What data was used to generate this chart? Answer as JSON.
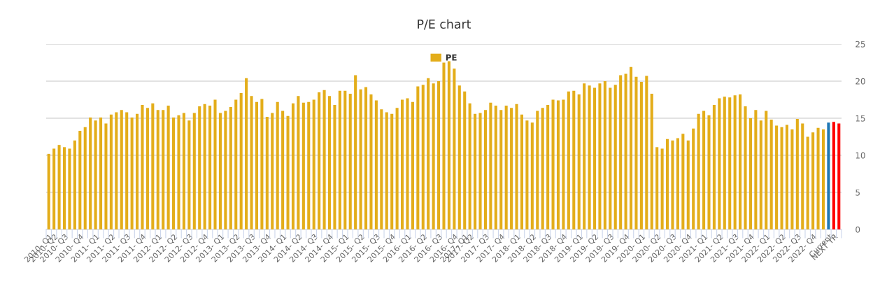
{
  "chart_data": {
    "type": "bar",
    "title": "P/E chart",
    "categories": [
      "2010- Q1",
      "2010- Q2",
      null,
      "2010- Q3",
      null,
      null,
      "2010- Q4",
      null,
      null,
      "2011- Q1",
      null,
      null,
      "2011- Q2",
      null,
      null,
      "2011- Q3",
      null,
      null,
      "2011- Q4",
      null,
      null,
      "2012- Q1",
      null,
      null,
      "2012- Q2",
      null,
      null,
      "2012- Q3",
      null,
      null,
      "2012- Q4",
      null,
      null,
      "2013- Q1",
      null,
      null,
      "2013- Q2",
      null,
      null,
      "2013- Q3",
      null,
      null,
      "2013- Q4",
      null,
      null,
      "2014- Q1",
      null,
      null,
      "2014- Q2",
      null,
      null,
      "2014- Q3",
      null,
      null,
      "2014- Q4",
      null,
      null,
      "2015- Q1",
      null,
      null,
      "2015- Q2",
      null,
      null,
      "2015- Q3",
      null,
      null,
      "2015- Q4",
      null,
      null,
      "2016- Q1",
      null,
      null,
      "2016- Q2",
      null,
      null,
      "2016- Q3",
      null,
      null,
      "2016- Q4",
      null,
      "2017- Q1",
      "2017- Q2",
      null,
      null,
      "2017- Q3",
      null,
      null,
      "2017- Q4",
      null,
      null,
      "2018- Q1",
      null,
      null,
      "2018- Q2",
      null,
      null,
      "2018- Q3",
      null,
      null,
      "2018- Q4",
      null,
      null,
      "2019- Q1",
      null,
      null,
      "2019- Q2",
      null,
      null,
      "2019- Q3",
      null,
      null,
      "2019- Q4",
      null,
      null,
      "2020- Q1",
      null,
      null,
      "2020- Q2",
      null,
      null,
      "2020- Q3",
      null,
      null,
      "2020- Q4",
      null,
      null,
      "2021- Q1",
      null,
      null,
      "2021- Q2",
      null,
      null,
      "2021- Q3",
      null,
      null,
      "2021- Q4",
      null,
      null,
      "2022- Q1",
      null,
      null,
      "2022- Q2",
      null,
      null,
      "2022- Q3",
      null,
      null,
      "2022- Q4",
      null,
      null,
      "Current",
      "NEXT YR",
      null
    ],
    "series": [
      {
        "name": "PE",
        "color": "#e3ad1a",
        "values": [
          10.2,
          10.9,
          11.4,
          11.1,
          10.9,
          12.0,
          13.3,
          13.8,
          15.1,
          14.7,
          15.1,
          14.3,
          15.5,
          15.8,
          16.1,
          15.8,
          15.1,
          15.6,
          16.8,
          16.4,
          17.0,
          16.1,
          16.1,
          16.7,
          15.1,
          15.4,
          15.7,
          14.7,
          15.7,
          16.6,
          16.9,
          16.7,
          17.5,
          15.7,
          16.0,
          16.5,
          17.5,
          18.4,
          20.4,
          18.0,
          17.2,
          17.6,
          15.2,
          15.7,
          17.2,
          16.0,
          15.3,
          17.0,
          18.0,
          17.1,
          17.2,
          17.5,
          18.5,
          18.8,
          18.0,
          16.8,
          18.7,
          18.7,
          18.3,
          20.8,
          18.9,
          19.2,
          18.2,
          17.4,
          16.2,
          15.8,
          15.6,
          16.4,
          17.5,
          17.7,
          17.2,
          19.3,
          19.5,
          20.4,
          19.7,
          20.0,
          22.5,
          22.7,
          21.7,
          19.4,
          18.6,
          17.0,
          15.6,
          15.7,
          16.1,
          17.1,
          16.7,
          16.1,
          16.7,
          16.4,
          16.9,
          15.5,
          14.7,
          14.4,
          16.0,
          16.4,
          16.8,
          17.5,
          17.4,
          17.5,
          18.6,
          18.7,
          18.2,
          19.7,
          19.4,
          19.1,
          19.7,
          20.0,
          19.1,
          19.5,
          20.8,
          21.0,
          21.9,
          20.6,
          19.9,
          20.7,
          18.3,
          11.1,
          10.9,
          12.2,
          12.0,
          12.3,
          12.9,
          12.0,
          13.6,
          15.6,
          16.0,
          15.4,
          16.8,
          17.7,
          17.9,
          17.8,
          18.1,
          18.2,
          16.6,
          15.0,
          16.1,
          14.7,
          16.0,
          14.8,
          14.0,
          13.8,
          14.1,
          13.5,
          14.9,
          14.3,
          12.5,
          13.1,
          13.7,
          13.5,
          14.4,
          14.5,
          14.3
        ],
        "colors": [
          "#e3ad1a",
          "#e3ad1a",
          "#e3ad1a",
          "#e3ad1a",
          "#e3ad1a",
          "#e3ad1a",
          "#e3ad1a",
          "#e3ad1a",
          "#e3ad1a",
          "#e3ad1a",
          "#e3ad1a",
          "#e3ad1a",
          "#e3ad1a",
          "#e3ad1a",
          "#e3ad1a",
          "#e3ad1a",
          "#e3ad1a",
          "#e3ad1a",
          "#e3ad1a",
          "#e3ad1a",
          "#e3ad1a",
          "#e3ad1a",
          "#e3ad1a",
          "#e3ad1a",
          "#e3ad1a",
          "#e3ad1a",
          "#e3ad1a",
          "#e3ad1a",
          "#e3ad1a",
          "#e3ad1a",
          "#e3ad1a",
          "#e3ad1a",
          "#e3ad1a",
          "#e3ad1a",
          "#e3ad1a",
          "#e3ad1a",
          "#e3ad1a",
          "#e3ad1a",
          "#e3ad1a",
          "#e3ad1a",
          "#e3ad1a",
          "#e3ad1a",
          "#e3ad1a",
          "#e3ad1a",
          "#e3ad1a",
          "#e3ad1a",
          "#e3ad1a",
          "#e3ad1a",
          "#e3ad1a",
          "#e3ad1a",
          "#e3ad1a",
          "#e3ad1a",
          "#e3ad1a",
          "#e3ad1a",
          "#e3ad1a",
          "#e3ad1a",
          "#e3ad1a",
          "#e3ad1a",
          "#e3ad1a",
          "#e3ad1a",
          "#e3ad1a",
          "#e3ad1a",
          "#e3ad1a",
          "#e3ad1a",
          "#e3ad1a",
          "#e3ad1a",
          "#e3ad1a",
          "#e3ad1a",
          "#e3ad1a",
          "#e3ad1a",
          "#e3ad1a",
          "#e3ad1a",
          "#e3ad1a",
          "#e3ad1a",
          "#e3ad1a",
          "#e3ad1a",
          "#e3ad1a",
          "#e3ad1a",
          "#e3ad1a",
          "#e3ad1a",
          "#e3ad1a",
          "#e3ad1a",
          "#e3ad1a",
          "#e3ad1a",
          "#e3ad1a",
          "#e3ad1a",
          "#e3ad1a",
          "#e3ad1a",
          "#e3ad1a",
          "#e3ad1a",
          "#e3ad1a",
          "#e3ad1a",
          "#e3ad1a",
          "#e3ad1a",
          "#e3ad1a",
          "#e3ad1a",
          "#e3ad1a",
          "#e3ad1a",
          "#e3ad1a",
          "#e3ad1a",
          "#e3ad1a",
          "#e3ad1a",
          "#e3ad1a",
          "#e3ad1a",
          "#e3ad1a",
          "#e3ad1a",
          "#e3ad1a",
          "#e3ad1a",
          "#e3ad1a",
          "#e3ad1a",
          "#e3ad1a",
          "#e3ad1a",
          "#e3ad1a",
          "#e3ad1a",
          "#e3ad1a",
          "#e3ad1a",
          "#e3ad1a",
          "#e3ad1a",
          "#e3ad1a",
          "#e3ad1a",
          "#e3ad1a",
          "#e3ad1a",
          "#e3ad1a",
          "#e3ad1a",
          "#e3ad1a",
          "#e3ad1a",
          "#e3ad1a",
          "#e3ad1a",
          "#e3ad1a",
          "#e3ad1a",
          "#e3ad1a",
          "#e3ad1a",
          "#e3ad1a",
          "#e3ad1a",
          "#e3ad1a",
          "#e3ad1a",
          "#e3ad1a",
          "#e3ad1a",
          "#e3ad1a",
          "#e3ad1a",
          "#e3ad1a",
          "#e3ad1a",
          "#e3ad1a",
          "#e3ad1a",
          "#e3ad1a",
          "#e3ad1a",
          "#e3ad1a",
          "#e3ad1a",
          "#e3ad1a",
          "#e3ad1a",
          "#1f77b4",
          "#ff0000",
          "#ff0000"
        ]
      }
    ],
    "ylim": [
      0,
      25
    ],
    "yticks": [
      0,
      5,
      10,
      15,
      20,
      25
    ],
    "grid": "y",
    "legend": "top"
  }
}
